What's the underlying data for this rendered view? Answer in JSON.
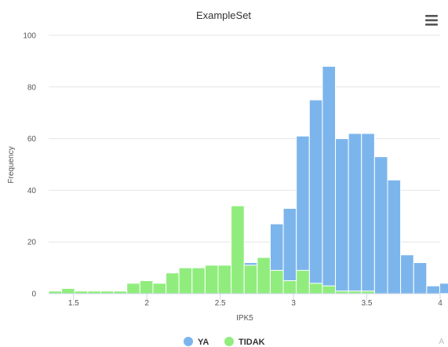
{
  "chart_data": {
    "type": "bar",
    "title": "ExampleSet",
    "xlabel": "IPK5",
    "ylabel": "Frequency",
    "xlim": [
      1.33,
      4.0
    ],
    "ylim": [
      0,
      100
    ],
    "x_ticks": [
      "1.5",
      "2",
      "2.5",
      "3",
      "3.5",
      "4"
    ],
    "y_ticks": [
      "0",
      "20",
      "40",
      "60",
      "80",
      "100"
    ],
    "bin_width": 0.0889,
    "bin_start": 1.33,
    "series": [
      {
        "name": "YA",
        "color": "#7cb5ec",
        "values": [
          0,
          0,
          0,
          0,
          0,
          0,
          0,
          0,
          0,
          0,
          0,
          0,
          0,
          0,
          0,
          12,
          0,
          27,
          33,
          61,
          75,
          88,
          60,
          62,
          62,
          53,
          44,
          15,
          12,
          3,
          4
        ]
      },
      {
        "name": "TIDAK",
        "color": "#90ed7d",
        "values": [
          1,
          2,
          1,
          1,
          1,
          1,
          4,
          5,
          4,
          8,
          10,
          10,
          11,
          11,
          34,
          11,
          14,
          9,
          5,
          9,
          4,
          3,
          1,
          1,
          1,
          0,
          0,
          0,
          0,
          0,
          0
        ]
      }
    ],
    "grid": true,
    "legend_position": "bottom"
  },
  "ui": {
    "menu_icon": "hamburger-menu-icon",
    "credit_mark": "A"
  }
}
